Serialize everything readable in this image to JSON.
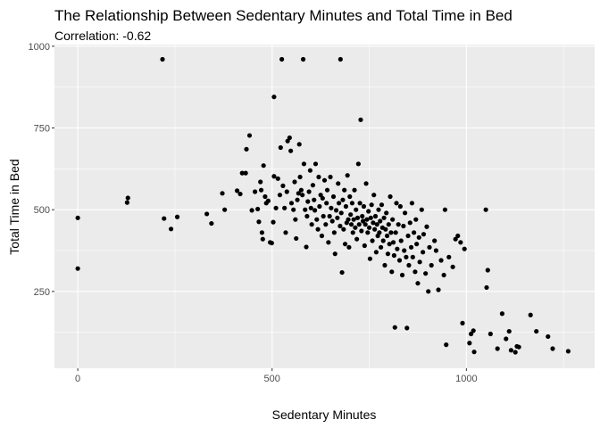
{
  "chart_data": {
    "type": "scatter",
    "title": "The Relationship Between Sedentary Minutes and Total Time in Bed",
    "subtitle": "Correlation: -0.62",
    "xlabel": "Sedentary Minutes",
    "ylabel": "Total Time in Bed",
    "xlim": [
      -60,
      1330
    ],
    "ylim": [
      15,
      1005
    ],
    "x_ticks": [
      0,
      500,
      1000
    ],
    "y_ticks": [
      250,
      500,
      750,
      1000
    ],
    "x_tick_labels": [
      "0",
      "500",
      "1000"
    ],
    "y_tick_labels": [
      "250",
      "500",
      "750",
      "1000"
    ],
    "grid": true,
    "panel_background": "#EBEBEB",
    "gridline_color": "#FFFFFF",
    "point_color": "#000000",
    "points": [
      [
        0,
        475
      ],
      [
        0,
        320
      ],
      [
        127,
        522
      ],
      [
        129,
        536
      ],
      [
        218,
        960
      ],
      [
        222,
        473
      ],
      [
        240,
        441
      ],
      [
        256,
        478
      ],
      [
        332,
        487
      ],
      [
        344,
        458
      ],
      [
        372,
        550
      ],
      [
        378,
        500
      ],
      [
        410,
        558
      ],
      [
        418,
        548
      ],
      [
        423,
        612
      ],
      [
        432,
        612
      ],
      [
        434,
        685
      ],
      [
        442,
        727
      ],
      [
        448,
        498
      ],
      [
        456,
        555
      ],
      [
        463,
        502
      ],
      [
        466,
        463
      ],
      [
        470,
        585
      ],
      [
        472,
        560
      ],
      [
        474,
        430
      ],
      [
        476,
        410
      ],
      [
        478,
        635
      ],
      [
        482,
        540
      ],
      [
        485,
        520
      ],
      [
        490,
        527
      ],
      [
        495,
        400
      ],
      [
        499,
        398
      ],
      [
        503,
        462
      ],
      [
        505,
        602
      ],
      [
        505,
        845
      ],
      [
        510,
        505
      ],
      [
        515,
        595
      ],
      [
        520,
        545
      ],
      [
        522,
        690
      ],
      [
        525,
        960
      ],
      [
        528,
        573
      ],
      [
        532,
        505
      ],
      [
        535,
        430
      ],
      [
        538,
        555
      ],
      [
        540,
        710
      ],
      [
        545,
        720
      ],
      [
        548,
        680
      ],
      [
        550,
        520
      ],
      [
        555,
        500
      ],
      [
        558,
        585
      ],
      [
        560,
        470
      ],
      [
        562,
        412
      ],
      [
        565,
        530
      ],
      [
        568,
        550
      ],
      [
        570,
        700
      ],
      [
        572,
        600
      ],
      [
        575,
        560
      ],
      [
        578,
        545
      ],
      [
        580,
        960
      ],
      [
        582,
        640
      ],
      [
        585,
        500
      ],
      [
        588,
        386
      ],
      [
        590,
        480
      ],
      [
        592,
        525
      ],
      [
        595,
        555
      ],
      [
        598,
        620
      ],
      [
        600,
        505
      ],
      [
        602,
        455
      ],
      [
        605,
        575
      ],
      [
        608,
        530
      ],
      [
        610,
        498
      ],
      [
        612,
        640
      ],
      [
        615,
        470
      ],
      [
        618,
        440
      ],
      [
        620,
        600
      ],
      [
        622,
        510
      ],
      [
        625,
        545
      ],
      [
        628,
        420
      ],
      [
        630,
        535
      ],
      [
        632,
        480
      ],
      [
        635,
        590
      ],
      [
        638,
        455
      ],
      [
        640,
        520
      ],
      [
        642,
        560
      ],
      [
        645,
        400
      ],
      [
        648,
        480
      ],
      [
        650,
        600
      ],
      [
        652,
        505
      ],
      [
        655,
        465
      ],
      [
        658,
        540
      ],
      [
        660,
        430
      ],
      [
        662,
        365
      ],
      [
        665,
        498
      ],
      [
        668,
        475
      ],
      [
        670,
        580
      ],
      [
        672,
        520
      ],
      [
        675,
        450
      ],
      [
        676,
        960
      ],
      [
        678,
        490
      ],
      [
        680,
        308
      ],
      [
        682,
        530
      ],
      [
        684,
        440
      ],
      [
        686,
        560
      ],
      [
        688,
        395
      ],
      [
        690,
        510
      ],
      [
        692,
        460
      ],
      [
        694,
        605
      ],
      [
        696,
        470
      ],
      [
        698,
        385
      ],
      [
        700,
        540
      ],
      [
        702,
        485
      ],
      [
        704,
        455
      ],
      [
        706,
        520
      ],
      [
        708,
        430
      ],
      [
        710,
        470
      ],
      [
        712,
        560
      ],
      [
        714,
        445
      ],
      [
        716,
        500
      ],
      [
        718,
        410
      ],
      [
        720,
        475
      ],
      [
        722,
        640
      ],
      [
        724,
        455
      ],
      [
        726,
        520
      ],
      [
        728,
        775
      ],
      [
        730,
        435
      ],
      [
        732,
        480
      ],
      [
        734,
        465
      ],
      [
        736,
        510
      ],
      [
        738,
        390
      ],
      [
        740,
        455
      ],
      [
        742,
        580
      ],
      [
        744,
        470
      ],
      [
        746,
        430
      ],
      [
        748,
        495
      ],
      [
        750,
        445
      ],
      [
        752,
        350
      ],
      [
        754,
        475
      ],
      [
        756,
        515
      ],
      [
        758,
        405
      ],
      [
        760,
        460
      ],
      [
        762,
        545
      ],
      [
        764,
        440
      ],
      [
        766,
        480
      ],
      [
        768,
        370
      ],
      [
        770,
        455
      ],
      [
        772,
        420
      ],
      [
        774,
        500
      ],
      [
        776,
        430
      ],
      [
        778,
        465
      ],
      [
        780,
        385
      ],
      [
        782,
        515
      ],
      [
        784,
        445
      ],
      [
        786,
        405
      ],
      [
        788,
        475
      ],
      [
        790,
        330
      ],
      [
        792,
        440
      ],
      [
        794,
        490
      ],
      [
        796,
        420
      ],
      [
        798,
        365
      ],
      [
        800,
        455
      ],
      [
        802,
        395
      ],
      [
        804,
        540
      ],
      [
        806,
        430
      ],
      [
        808,
        310
      ],
      [
        810,
        470
      ],
      [
        812,
        400
      ],
      [
        814,
        360
      ],
      [
        816,
        140
      ],
      [
        818,
        430
      ],
      [
        820,
        520
      ],
      [
        822,
        380
      ],
      [
        825,
        455
      ],
      [
        828,
        345
      ],
      [
        830,
        510
      ],
      [
        832,
        405
      ],
      [
        835,
        300
      ],
      [
        838,
        450
      ],
      [
        840,
        375
      ],
      [
        842,
        490
      ],
      [
        845,
        355
      ],
      [
        847,
        138
      ],
      [
        850,
        420
      ],
      [
        852,
        330
      ],
      [
        855,
        460
      ],
      [
        858,
        385
      ],
      [
        860,
        520
      ],
      [
        862,
        355
      ],
      [
        865,
        430
      ],
      [
        868,
        310
      ],
      [
        870,
        470
      ],
      [
        872,
        395
      ],
      [
        875,
        275
      ],
      [
        878,
        415
      ],
      [
        880,
        340
      ],
      [
        885,
        500
      ],
      [
        888,
        370
      ],
      [
        890,
        425
      ],
      [
        895,
        305
      ],
      [
        898,
        448
      ],
      [
        902,
        250
      ],
      [
        905,
        385
      ],
      [
        910,
        330
      ],
      [
        918,
        405
      ],
      [
        922,
        375
      ],
      [
        928,
        255
      ],
      [
        935,
        345
      ],
      [
        942,
        300
      ],
      [
        945,
        500
      ],
      [
        948,
        87
      ],
      [
        955,
        355
      ],
      [
        965,
        325
      ],
      [
        972,
        410
      ],
      [
        978,
        420
      ],
      [
        985,
        400
      ],
      [
        990,
        153
      ],
      [
        995,
        380
      ],
      [
        1008,
        92
      ],
      [
        1012,
        120
      ],
      [
        1018,
        130
      ],
      [
        1020,
        65
      ],
      [
        1050,
        500
      ],
      [
        1052,
        262
      ],
      [
        1055,
        315
      ],
      [
        1062,
        120
      ],
      [
        1080,
        75
      ],
      [
        1092,
        182
      ],
      [
        1102,
        105
      ],
      [
        1110,
        128
      ],
      [
        1115,
        70
      ],
      [
        1126,
        64
      ],
      [
        1130,
        82
      ],
      [
        1135,
        80
      ],
      [
        1165,
        178
      ],
      [
        1180,
        128
      ],
      [
        1210,
        112
      ],
      [
        1222,
        75
      ],
      [
        1262,
        67
      ]
    ]
  }
}
